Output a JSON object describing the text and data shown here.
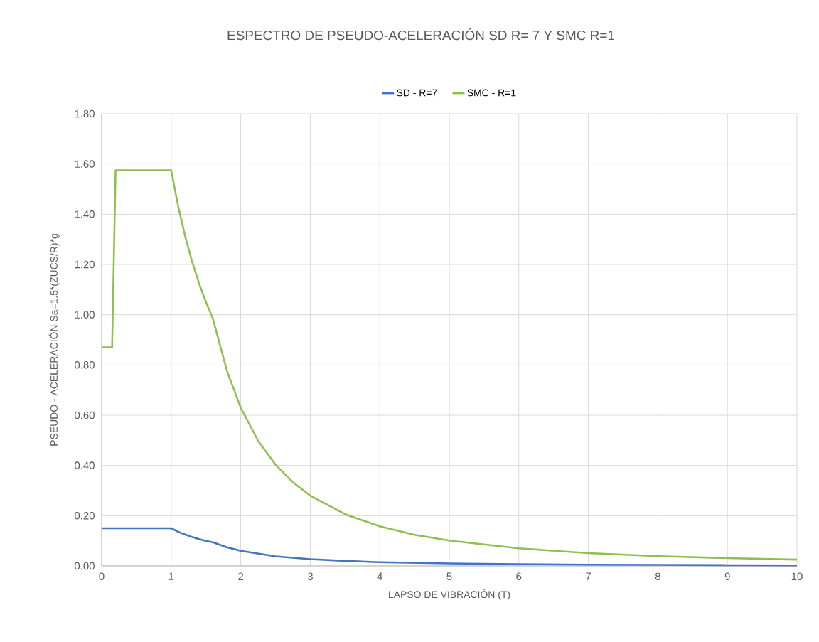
{
  "chart_data": {
    "type": "line",
    "title": "ESPECTRO DE PSEUDO-ACELERACIÓN SD R= 7 Y SMC R=1",
    "xlabel": "LAPSO DE VIBRACIÓN (T)",
    "ylabel": "PSEUDO - ACELERACIÓN Sa=1.5*(ZUCS/R)*g",
    "series": [
      {
        "name": "SD - R=7",
        "color": "#4472c4",
        "x": [
          0,
          1,
          1.1,
          1.2,
          1.3,
          1.4,
          1.5,
          1.6,
          1.8,
          2,
          2.5,
          3,
          3.5,
          4,
          5,
          6,
          7,
          8,
          9,
          10
        ],
        "values": [
          0.15,
          0.15,
          0.136,
          0.125,
          0.115,
          0.107,
          0.1,
          0.094,
          0.074,
          0.06,
          0.038,
          0.027,
          0.02,
          0.015,
          0.01,
          0.007,
          0.005,
          0.004,
          0.003,
          0.002
        ]
      },
      {
        "name": "SMC -   R=1",
        "color": "#8fbf4f",
        "x": [
          0,
          0.15,
          0.2,
          1,
          1.1,
          1.2,
          1.3,
          1.4,
          1.5,
          1.6,
          1.8,
          2,
          2.25,
          2.5,
          2.75,
          3,
          3.5,
          4,
          4.5,
          5,
          6,
          7,
          8,
          9,
          10
        ],
        "values": [
          0.87,
          0.87,
          1.575,
          1.575,
          1.432,
          1.313,
          1.212,
          1.125,
          1.05,
          0.984,
          0.778,
          0.63,
          0.498,
          0.403,
          0.333,
          0.28,
          0.206,
          0.158,
          0.124,
          0.101,
          0.07,
          0.051,
          0.039,
          0.031,
          0.025
        ]
      }
    ],
    "xlim": [
      0,
      10
    ],
    "ylim": [
      0,
      1.8
    ],
    "xticks": [
      0,
      1,
      2,
      3,
      4,
      5,
      6,
      7,
      8,
      9,
      10
    ],
    "yticks": [
      {
        "value": 0,
        "label": "0.00"
      },
      {
        "value": 0.2,
        "label": "0.20"
      },
      {
        "value": 0.4,
        "label": "0.40"
      },
      {
        "value": 0.6,
        "label": "0.60"
      },
      {
        "value": 0.8,
        "label": "0.80"
      },
      {
        "value": 1.0,
        "label": "1.00"
      },
      {
        "value": 1.2,
        "label": "1.20"
      },
      {
        "value": 1.4,
        "label": "1.40"
      },
      {
        "value": 1.6,
        "label": "1.60"
      },
      {
        "value": 1.8,
        "label": "1.80"
      }
    ],
    "grid": true,
    "legend": "top",
    "marker": "none",
    "line_style": "solid"
  }
}
